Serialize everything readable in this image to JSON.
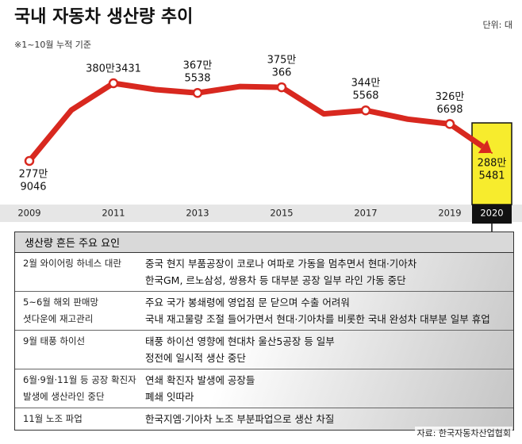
{
  "header": {
    "title": "국내 자동차 생산량 추이",
    "unit": "단위: 대",
    "note": "※1~10월 누적 기준"
  },
  "chart_data": {
    "type": "line",
    "categories": [
      "2009",
      null,
      "2011",
      null,
      "2013",
      null,
      "2015",
      null,
      "2017",
      null,
      "2019",
      "2020"
    ],
    "values": [
      2779046,
      3450000,
      3803431,
      3720000,
      3675538,
      3760000,
      3750366,
      3400000,
      3445568,
      3330000,
      3266698,
      2885481
    ],
    "value_labels": [
      [
        "277만",
        "9046"
      ],
      null,
      [
        "380만3431"
      ],
      null,
      [
        "367만",
        "5538"
      ],
      null,
      [
        "375만",
        "366"
      ],
      null,
      [
        "344만",
        "5568"
      ],
      null,
      [
        "326만",
        "6698"
      ],
      [
        "288만",
        "5481"
      ]
    ],
    "color": "#d8281f",
    "highlight_color": "#f7ec2d"
  },
  "table": {
    "title": "생산량 흔든 주요 요인",
    "rows": [
      {
        "cause": [
          "2월 와이어링 하네스 대란"
        ],
        "effect": [
          "중국 현지 부품공장이 코로나 여파로 가동을 멈추면서 현대·기아차",
          "한국GM, 르노삼성, 쌍용차 등 대부분 공장 일부 라인 가동 중단"
        ]
      },
      {
        "cause": [
          "5~6월 해외 판매망",
          "셧다운에 재고관리"
        ],
        "effect": [
          "주요 국가 봉쇄령에 영업점 문 닫으며 수출 어려워",
          "국내 재고물량 조절 들어가면서 현대·기아차를 비롯한 국내 완성차 대부분 일부 휴업"
        ]
      },
      {
        "cause": [
          "9월 태풍 하이선"
        ],
        "effect": [
          "태풍 하이선 영향에 현대차 울산5공장 등 일부",
          "정전에 일시적 생산 중단"
        ]
      },
      {
        "cause": [
          "6월·9월·11월 등 공장 확진자",
          "발생에 생산라인 중단"
        ],
        "effect": [
          "연쇄 확진자 발생에 공장들",
          "폐쇄 잇따라"
        ]
      },
      {
        "cause": [
          "11월 노조 파업"
        ],
        "effect": [
          "한국지엠·기아차 노조 부분파업으로 생산 차질"
        ]
      }
    ]
  },
  "source": "자료: 한국자동차산업협회"
}
